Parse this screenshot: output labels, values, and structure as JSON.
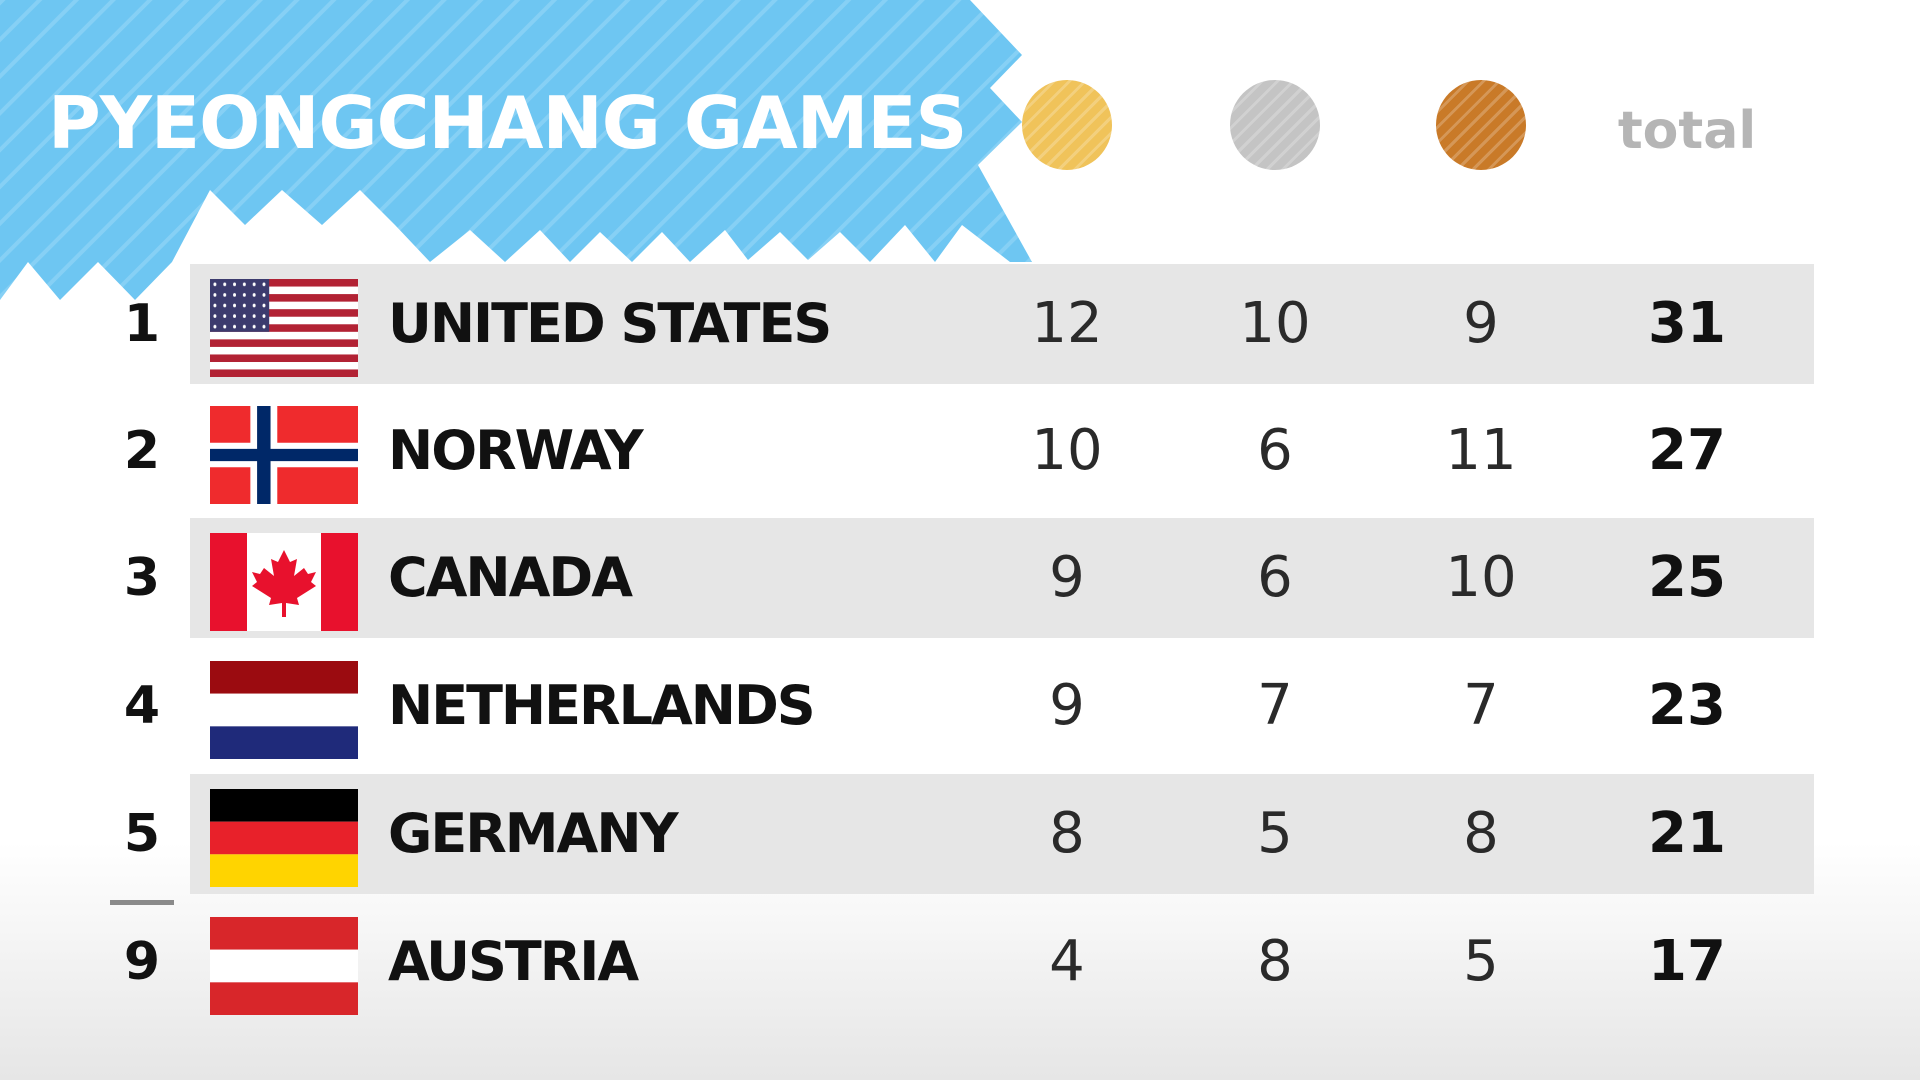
{
  "title": "PYEONGCHANG GAMES",
  "header": {
    "total_label": "total",
    "medal_colors": {
      "gold": "#f0c35a",
      "silver": "#c4c4c4",
      "bronze": "#c97a28"
    }
  },
  "banner_color": "#6ec6f2",
  "rows": [
    {
      "rank": "1",
      "country": "UNITED STATES",
      "flag": "usa-flag-icon",
      "gold": "12",
      "silver": "10",
      "bronze": "9",
      "total": "31"
    },
    {
      "rank": "2",
      "country": "NORWAY",
      "flag": "norway-flag-icon",
      "gold": "10",
      "silver": "6",
      "bronze": "11",
      "total": "27"
    },
    {
      "rank": "3",
      "country": "CANADA",
      "flag": "canada-flag-icon",
      "gold": "9",
      "silver": "6",
      "bronze": "10",
      "total": "25"
    },
    {
      "rank": "4",
      "country": "NETHERLANDS",
      "flag": "netherlands-flag-icon",
      "gold": "9",
      "silver": "7",
      "bronze": "7",
      "total": "23"
    },
    {
      "rank": "5",
      "country": "GERMANY",
      "flag": "germany-flag-icon",
      "gold": "8",
      "silver": "5",
      "bronze": "8",
      "total": "21"
    },
    {
      "rank": "9",
      "country": "AUSTRIA",
      "flag": "austria-flag-icon",
      "gold": "4",
      "silver": "8",
      "bronze": "5",
      "total": "17"
    }
  ]
}
